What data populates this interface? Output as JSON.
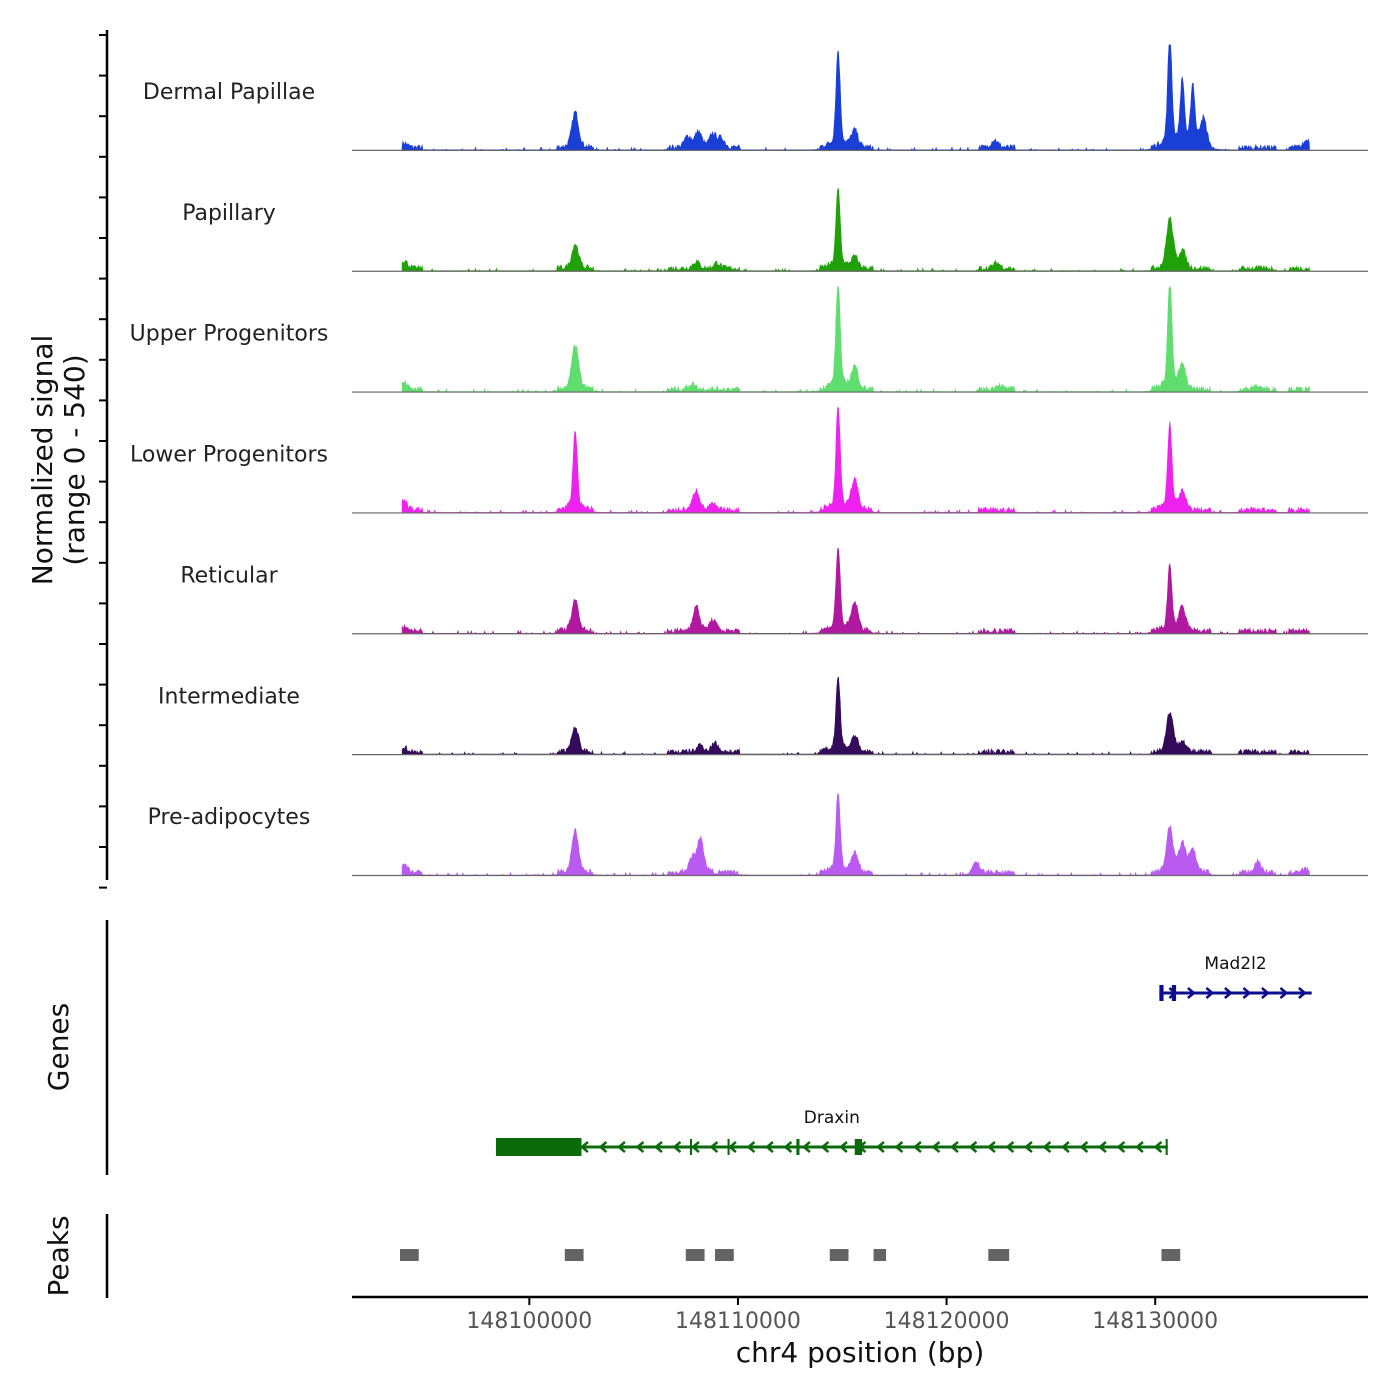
{
  "chart_data": {
    "type": "area",
    "title": "",
    "ylabel_line1": "Normalized signal",
    "ylabel_line2": "(range 0 - 540)",
    "yrange": [
      0,
      540
    ],
    "xlabel": "chr4 position (bp)",
    "xlim": [
      148091500,
      148140200
    ],
    "xticks": [
      148100000,
      148110000,
      148120000,
      148130000
    ],
    "xtick_labels": [
      "148100000",
      "148110000",
      "148120000",
      "148130000"
    ],
    "signal_start": 148093900,
    "signal_end": 148137400,
    "peak_sites": [
      148094000,
      148102200,
      148107500,
      148108300,
      148108900,
      148109200,
      148114800,
      148115600,
      148122400,
      148130700,
      148131300,
      148131800,
      148134900,
      148137300
    ],
    "tracks": [
      {
        "name": "Dermal Papillae",
        "color": "#1a3fd6",
        "peaks": [
          [
            148094000,
            0.04
          ],
          [
            148102200,
            0.32
          ],
          [
            148107600,
            0.1
          ],
          [
            148108100,
            0.14
          ],
          [
            148108800,
            0.12
          ],
          [
            148109200,
            0.08
          ],
          [
            148114800,
            0.88
          ],
          [
            148115600,
            0.15
          ],
          [
            148122300,
            0.07
          ],
          [
            148130700,
            1.0
          ],
          [
            148131300,
            0.58
          ],
          [
            148131800,
            0.55
          ],
          [
            148132300,
            0.25
          ],
          [
            148137300,
            0.07
          ]
        ]
      },
      {
        "name": "Papillary",
        "color": "#20a10a",
        "peaks": [
          [
            148094000,
            0.07
          ],
          [
            148102200,
            0.22
          ],
          [
            148108000,
            0.06
          ],
          [
            148109000,
            0.05
          ],
          [
            148114800,
            0.72
          ],
          [
            148115600,
            0.1
          ],
          [
            148122400,
            0.05
          ],
          [
            148130700,
            0.45
          ],
          [
            148131300,
            0.16
          ]
        ]
      },
      {
        "name": "Upper Progenitors",
        "color": "#5fdd6e",
        "peaks": [
          [
            148094000,
            0.06
          ],
          [
            148102200,
            0.4
          ],
          [
            148107800,
            0.05
          ],
          [
            148114800,
            0.98
          ],
          [
            148115600,
            0.2
          ],
          [
            148122500,
            0.04
          ],
          [
            148130700,
            0.98
          ],
          [
            148131300,
            0.2
          ],
          [
            148134900,
            0.03
          ]
        ]
      },
      {
        "name": "Lower Progenitors",
        "color": "#ee22ee",
        "peaks": [
          [
            148094000,
            0.08
          ],
          [
            148102200,
            0.72
          ],
          [
            148108000,
            0.18
          ],
          [
            148108800,
            0.05
          ],
          [
            148114800,
            0.95
          ],
          [
            148115600,
            0.27
          ],
          [
            148130700,
            0.78
          ],
          [
            148131300,
            0.15
          ]
        ]
      },
      {
        "name": "Reticular",
        "color": "#b0199f",
        "peaks": [
          [
            148094000,
            0.04
          ],
          [
            148102200,
            0.28
          ],
          [
            148108000,
            0.22
          ],
          [
            148108800,
            0.1
          ],
          [
            148114800,
            0.75
          ],
          [
            148115600,
            0.25
          ],
          [
            148130700,
            0.6
          ],
          [
            148131300,
            0.2
          ]
        ]
      },
      {
        "name": "Intermediate",
        "color": "#330b5a",
        "peaks": [
          [
            148094000,
            0.04
          ],
          [
            148102200,
            0.22
          ],
          [
            148108200,
            0.06
          ],
          [
            148108900,
            0.08
          ],
          [
            148114800,
            0.68
          ],
          [
            148115600,
            0.14
          ],
          [
            148130700,
            0.36
          ],
          [
            148131300,
            0.1
          ]
        ]
      },
      {
        "name": "Pre-adipocytes",
        "color": "#b95af0",
        "peaks": [
          [
            148094000,
            0.07
          ],
          [
            148102200,
            0.38
          ],
          [
            148107800,
            0.12
          ],
          [
            148108200,
            0.3
          ],
          [
            148114800,
            0.72
          ],
          [
            148115600,
            0.18
          ],
          [
            148121400,
            0.12
          ],
          [
            148130700,
            0.4
          ],
          [
            148131300,
            0.26
          ],
          [
            148131800,
            0.2
          ],
          [
            148134900,
            0.1
          ],
          [
            148137200,
            0.03
          ]
        ]
      }
    ],
    "genes_label": "Genes",
    "genes": [
      {
        "name": "Mad2l2",
        "color": "#0d0d8f",
        "strand": "+",
        "start": 148130200,
        "end": 148137500,
        "exons": [
          [
            148130200,
            148130400
          ],
          [
            148130800,
            148131000
          ]
        ]
      },
      {
        "name": "Draxin",
        "color": "#0b6b0b",
        "strand": "-",
        "start": 148098400,
        "end": 148130600,
        "exons": [
          [
            148098400,
            148102500
          ],
          [
            148107700,
            148107800
          ],
          [
            148109500,
            148109600
          ],
          [
            148112800,
            148112950
          ],
          [
            148115600,
            148115950
          ],
          [
            148130500,
            148130600
          ]
        ]
      }
    ],
    "peaks_label": "Peaks",
    "peak_regions": [
      [
        148093800,
        148094700
      ],
      [
        148101700,
        148102600
      ],
      [
        148107500,
        148108400
      ],
      [
        148108900,
        148109800
      ],
      [
        148114400,
        148115300
      ],
      [
        148116500,
        148117100
      ],
      [
        148122000,
        148123000
      ],
      [
        148130300,
        148131200
      ]
    ],
    "peak_color": "#646464"
  }
}
